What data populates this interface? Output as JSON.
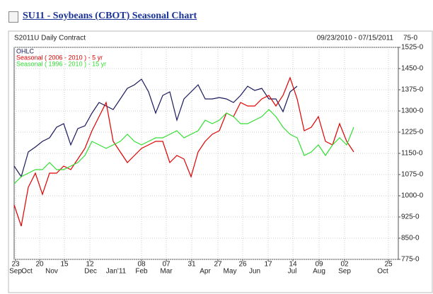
{
  "header": {
    "title": "SU11 - Soybeans (CBOT) Seasonal Chart"
  },
  "chart_data": {
    "type": "line",
    "title": "S2011U Daily Contract",
    "date_range": "09/23/2010 - 07/15/2011",
    "scale_label": "75-0",
    "xlim": [
      0,
      543
    ],
    "ylim": [
      775,
      1525
    ],
    "yticks": [
      {
        "value": 775,
        "label": "775-0"
      },
      {
        "value": 850,
        "label": "850-0"
      },
      {
        "value": 925,
        "label": "925-0"
      },
      {
        "value": 1000,
        "label": "1000-0"
      },
      {
        "value": 1075,
        "label": "1075-0"
      },
      {
        "value": 1150,
        "label": "1150-0"
      },
      {
        "value": 1225,
        "label": "1225-0"
      },
      {
        "value": 1300,
        "label": "1300-0"
      },
      {
        "value": 1375,
        "label": "1375-0"
      },
      {
        "value": 1450,
        "label": "1450-0"
      },
      {
        "value": 1525,
        "label": "1525-0"
      }
    ],
    "xticks": [
      {
        "value": 2,
        "label": "23"
      },
      {
        "value": 36,
        "label": "20"
      },
      {
        "value": 71,
        "label": "15"
      },
      {
        "value": 107,
        "label": "12"
      },
      {
        "value": 180,
        "label": "08"
      },
      {
        "value": 215,
        "label": "07"
      },
      {
        "value": 251,
        "label": "31"
      },
      {
        "value": 288,
        "label": "27"
      },
      {
        "value": 323,
        "label": "26"
      },
      {
        "value": 359,
        "label": "17"
      },
      {
        "value": 394,
        "label": "14"
      },
      {
        "value": 431,
        "label": "09"
      },
      {
        "value": 467,
        "label": "02"
      },
      {
        "value": 529,
        "label": "25"
      }
    ],
    "xmonths": [
      {
        "value": 2,
        "label": "Sep"
      },
      {
        "value": 18,
        "label": "Oct"
      },
      {
        "value": 53,
        "label": "Nov"
      },
      {
        "value": 108,
        "label": "Dec"
      },
      {
        "value": 144,
        "label": "Jan'11"
      },
      {
        "value": 180,
        "label": "Feb"
      },
      {
        "value": 215,
        "label": "Mar"
      },
      {
        "value": 270,
        "label": "Apr"
      },
      {
        "value": 305,
        "label": "May"
      },
      {
        "value": 340,
        "label": "Jun"
      },
      {
        "value": 393,
        "label": "Jul"
      },
      {
        "value": 431,
        "label": "Aug"
      },
      {
        "value": 467,
        "label": "Sep"
      },
      {
        "value": 521,
        "label": "Oct"
      }
    ],
    "grid": true,
    "series": [
      {
        "name": "OHLC",
        "color": "#1a1a5e",
        "x": [
          0,
          10,
          20,
          30,
          40,
          50,
          60,
          70,
          80,
          90,
          100,
          110,
          120,
          130,
          140,
          150,
          160,
          170,
          180,
          190,
          200,
          210,
          220,
          230,
          240,
          250,
          260,
          270,
          280,
          290,
          300,
          310,
          320,
          330,
          340,
          350,
          360,
          370,
          380,
          390,
          400
        ],
        "values": [
          1105,
          1067.5,
          1155,
          1172.5,
          1192.5,
          1205,
          1242.5,
          1255,
          1180,
          1237.5,
          1247.5,
          1292.5,
          1330,
          1317.5,
          1305,
          1342.5,
          1380,
          1392.5,
          1412.5,
          1367.5,
          1292.5,
          1355,
          1367.5,
          1267.5,
          1342.5,
          1367.5,
          1392.5,
          1342.5,
          1342.5,
          1347.5,
          1342.5,
          1330,
          1355,
          1387.5,
          1372.5,
          1380,
          1342.5,
          1342.5,
          1297.5,
          1367.5,
          1387.5
        ]
      },
      {
        "name": "Seasonal ( 2006 - 2010 ) - 5 yr",
        "color": "#e00000",
        "x": [
          0,
          10,
          20,
          30,
          40,
          50,
          60,
          70,
          80,
          90,
          100,
          110,
          120,
          130,
          140,
          150,
          160,
          170,
          180,
          190,
          200,
          210,
          220,
          230,
          240,
          250,
          260,
          270,
          280,
          290,
          300,
          310,
          320,
          330,
          340,
          350,
          360,
          370,
          380,
          390,
          400,
          410,
          420,
          430,
          440,
          450,
          460,
          470,
          480
        ],
        "values": [
          967.5,
          892.5,
          1030,
          1080,
          1005,
          1080,
          1080,
          1105,
          1092.5,
          1130,
          1167.5,
          1230,
          1280,
          1330,
          1192.5,
          1155,
          1117.5,
          1142.5,
          1167.5,
          1180,
          1192.5,
          1192.5,
          1117.5,
          1142.5,
          1130,
          1067.5,
          1155,
          1192.5,
          1217.5,
          1230,
          1292.5,
          1280,
          1330,
          1317.5,
          1317.5,
          1342.5,
          1355,
          1317.5,
          1355,
          1417.5,
          1342.5,
          1230,
          1242.5,
          1280,
          1192.5,
          1180,
          1255,
          1192.5,
          1155
        ]
      },
      {
        "name": "Seasonal ( 1996 - 2010 ) - 15 yr",
        "color": "#33dd33",
        "x": [
          0,
          10,
          20,
          30,
          40,
          50,
          60,
          70,
          80,
          90,
          100,
          110,
          120,
          130,
          140,
          150,
          160,
          170,
          180,
          190,
          200,
          210,
          220,
          230,
          240,
          250,
          260,
          270,
          280,
          290,
          300,
          310,
          320,
          330,
          340,
          350,
          360,
          370,
          380,
          390,
          400,
          410,
          420,
          430,
          440,
          450,
          460,
          470,
          480
        ],
        "values": [
          1042.5,
          1067.5,
          1080,
          1092.5,
          1092.5,
          1117.5,
          1092.5,
          1092.5,
          1105,
          1117.5,
          1142.5,
          1192.5,
          1180,
          1167.5,
          1180,
          1192.5,
          1217.5,
          1192.5,
          1180,
          1192.5,
          1205,
          1205,
          1217.5,
          1230,
          1205,
          1217.5,
          1230,
          1267.5,
          1255,
          1267.5,
          1292.5,
          1280,
          1255,
          1255,
          1267.5,
          1280,
          1305,
          1280,
          1242.5,
          1217.5,
          1205,
          1142.5,
          1155,
          1180,
          1142.5,
          1180,
          1205,
          1180,
          1242.5
        ]
      }
    ]
  }
}
